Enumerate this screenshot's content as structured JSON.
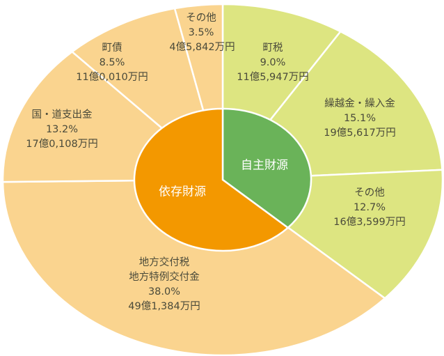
{
  "chart_data": {
    "type": "pie",
    "subtype": "nested-donut",
    "inner_ring": [
      {
        "label": "自主財源",
        "percent": 36.8,
        "color": "#6AB359"
      },
      {
        "label": "依存財源",
        "percent": 63.2,
        "color": "#F39800"
      }
    ],
    "outer_ring": [
      {
        "label": "町税",
        "percent_label": "9.0%",
        "percent": 9.0,
        "amount": "11億5,947万円",
        "group": "自主財源",
        "color": "#DDE581"
      },
      {
        "label": "繰越金・繰入金",
        "percent_label": "15.1%",
        "percent": 15.1,
        "amount": "19億5,617万円",
        "group": "自主財源",
        "color": "#DDE581"
      },
      {
        "label": "その他",
        "percent_label": "12.7%",
        "percent": 12.7,
        "amount": "16億3,599万円",
        "group": "自主財源",
        "color": "#DDE581"
      },
      {
        "label": "地方交付税\n地方特例交付金",
        "label_lines": [
          "地方交付税",
          "地方特例交付金"
        ],
        "percent_label": "38.0%",
        "percent": 38.0,
        "amount": "49億1,384万円",
        "group": "依存財源",
        "color": "#FAD48F"
      },
      {
        "label": "国・道支出金",
        "percent_label": "13.2%",
        "percent": 13.2,
        "amount": "17億0,108万円",
        "group": "依存財源",
        "color": "#FAD48F"
      },
      {
        "label": "町債",
        "percent_label": "8.5%",
        "percent": 8.5,
        "amount": "11億0,010万円",
        "group": "依存財源",
        "color": "#FAD48F"
      },
      {
        "label": "その他",
        "percent_label": "3.5%",
        "percent": 3.5,
        "amount": "4億5,842万円",
        "group": "依存財源",
        "color": "#FAD48F"
      }
    ],
    "start": "top",
    "direction": "clockwise"
  }
}
